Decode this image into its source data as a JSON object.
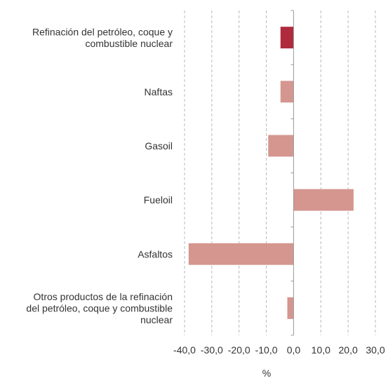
{
  "chart_data": {
    "type": "bar",
    "orientation": "horizontal",
    "categories": [
      "Refinación del petróleo, coque y combustible nuclear",
      "Naftas",
      "Gasoil",
      "Fueloil",
      "Asfaltos",
      "Otros productos de la refinación del petróleo, coque y combustible nuclear"
    ],
    "category_lines": [
      [
        "Refinación del petróleo, coque y",
        "combustible nuclear"
      ],
      [
        "Naftas"
      ],
      [
        "Gasoil"
      ],
      [
        "Fueloil"
      ],
      [
        "Asfaltos"
      ],
      [
        "Otros productos de la refinación",
        "del petróleo, coque y combustible",
        "nuclear"
      ]
    ],
    "values": [
      -4.8,
      -4.8,
      -9.3,
      22.0,
      -38.5,
      -2.3
    ],
    "highlight_index": 0,
    "xlabel": "%",
    "xlim": [
      -40,
      30
    ],
    "xticks": [
      -40,
      -30,
      -20,
      -10,
      0,
      10,
      20,
      30
    ],
    "xtick_labels": [
      "-40,0",
      "-30,0",
      "-20,0",
      "-10,0",
      "0,0",
      "10,0",
      "20,0",
      "30,0"
    ],
    "grid": "vertical dashed",
    "legend": "none",
    "colors": {
      "highlight": "#b02a3e",
      "bar": "#d4968f",
      "grid": "#b8b8b8",
      "axis": "#999999"
    }
  }
}
